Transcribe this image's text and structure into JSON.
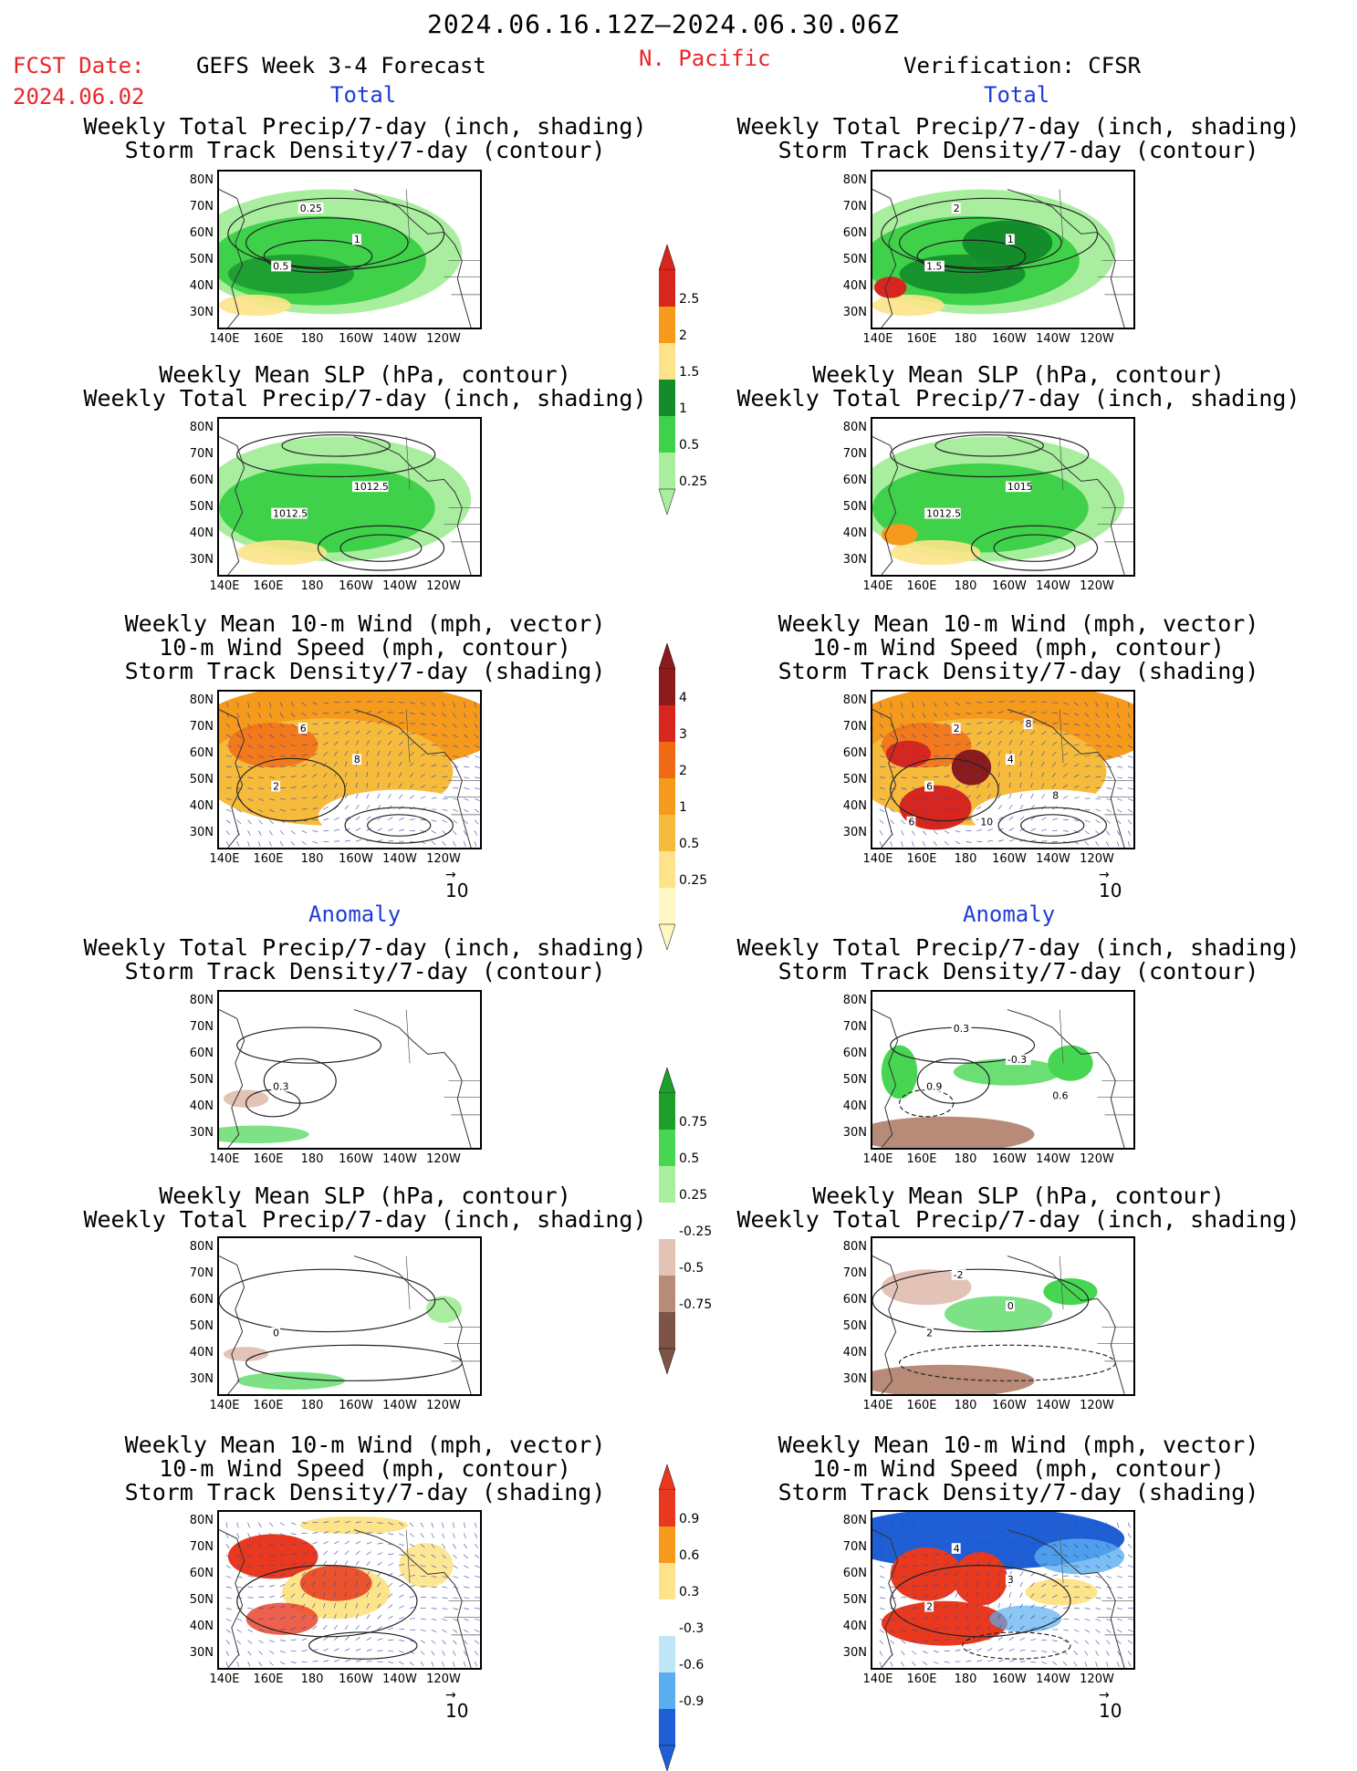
{
  "header": {
    "period": "2024.06.16.12Z–2024.06.30.06Z",
    "fcst_label": "FCST Date:",
    "fcst_date": "2024.06.02",
    "model": "GEFS Week 3-4 Forecast",
    "region": "N. Pacific",
    "verification": "Verification: CFSR"
  },
  "sections": {
    "total_left": "Total",
    "total_right": "Total",
    "anom_left": "Anomaly",
    "anom_right": "Anomaly"
  },
  "titles": {
    "p1": [
      "Weekly Total Precip/7-day (inch, shading)",
      "Storm Track Density/7-day (contour)"
    ],
    "p2": [
      "Weekly Mean SLP (hPa, contour)",
      "Weekly Total Precip/7-day (inch, shading)"
    ],
    "p3": [
      "Weekly Mean 10-m Wind (mph, vector)",
      "10-m Wind Speed (mph, contour)",
      "Storm Track Density/7-day (shading)"
    ]
  },
  "axes": {
    "lat": [
      "80N",
      "70N",
      "60N",
      "50N",
      "40N",
      "30N"
    ],
    "lon": [
      "140E",
      "160E",
      "180",
      "160W",
      "140W",
      "120W"
    ]
  },
  "vector_ref": "10",
  "colorbars": {
    "precip_total": {
      "labels": [
        "2.5",
        "2",
        "1.5",
        "1",
        "0.5",
        "0.25"
      ],
      "colors": [
        "#d7261e",
        "#f59a1a",
        "#fde48a",
        "#138c2a",
        "#3fd14a",
        "#a9ee9f"
      ]
    },
    "storm_total": {
      "labels": [
        "4",
        "3",
        "2",
        "1",
        "0.5",
        "0.25"
      ],
      "colors": [
        "#8b1a1a",
        "#d7261e",
        "#f06a14",
        "#f59a1a",
        "#f7bb3c",
        "#fde48a",
        "#fff7c4"
      ]
    },
    "precip_anom": {
      "labels": [
        "0.75",
        "0.5",
        "0.25",
        "-0.25",
        "-0.5",
        "-0.75"
      ],
      "colors": [
        "#1f9e2c",
        "#46d651",
        "#a9ee9f",
        "#ffffff",
        "#e2c3b6",
        "#b88b78",
        "#7d5445"
      ]
    },
    "storm_anom": {
      "labels": [
        "0.9",
        "0.6",
        "0.3",
        "-0.3",
        "-0.6",
        "-0.9"
      ],
      "colors": [
        "#e8391f",
        "#f59a1a",
        "#fde48a",
        "#ffffff",
        "#bfe6f7",
        "#5aaef0",
        "#1f5fd6"
      ]
    }
  },
  "contour_labels": {
    "l1": [
      "0.5",
      "1",
      "0.25"
    ],
    "r1": [
      "1.5",
      "1",
      "2"
    ],
    "l2": [
      "1012.5",
      "1012.5"
    ],
    "r2": [
      "1012.5",
      "1015"
    ],
    "l3": [
      "2",
      "8",
      "6"
    ],
    "r3": [
      "6",
      "4",
      "2",
      "8",
      "6",
      "8",
      "10"
    ],
    "l4": [
      "0.3"
    ],
    "r4": [
      "0.9",
      "-0.3",
      "0.3",
      "0.6"
    ],
    "l5": [
      "0"
    ],
    "r5": [
      "2",
      "0",
      "-2"
    ],
    "l6": [],
    "r6": [
      "2",
      "3",
      "4"
    ]
  },
  "colors": {
    "accent_red": "#e8262a",
    "accent_blue": "#1f3bd6"
  }
}
